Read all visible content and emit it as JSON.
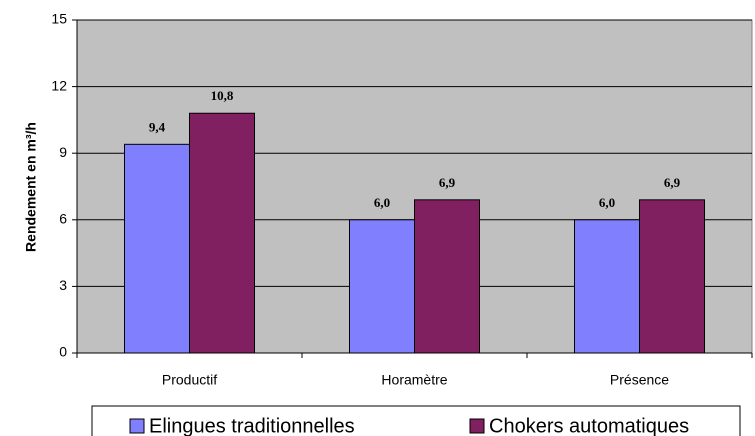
{
  "chart_data": {
    "type": "bar",
    "y_label": "Rendement en m³/h",
    "categories": [
      "Productif",
      "Horamètre",
      "Présence"
    ],
    "series": [
      {
        "name": "Elingues traditionnelles",
        "color": "#8080ff",
        "values": [
          9.4,
          6.0,
          6.0
        ],
        "value_labels": [
          "9,4",
          "6,0",
          "6,0"
        ]
      },
      {
        "name": "Chokers automatiques",
        "color": "#802060",
        "values": [
          10.8,
          6.9,
          6.9
        ],
        "value_labels": [
          "10,8",
          "6,9",
          "6,9"
        ]
      }
    ],
    "ylim": [
      0,
      15
    ],
    "yticks": [
      0,
      3,
      6,
      9,
      12,
      15
    ],
    "grid": true,
    "legend": "bottom"
  }
}
